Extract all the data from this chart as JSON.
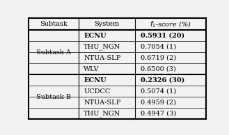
{
  "col_headers": [
    "Subtask",
    "System",
    "f1-score (%)"
  ],
  "rows": [
    {
      "subtask": "Subtask A",
      "system": "ECNU",
      "score": "0.5931 (20)",
      "bold": true
    },
    {
      "subtask": "",
      "system": "THU_NGN",
      "score": "0.7054 (1)",
      "bold": false
    },
    {
      "subtask": "",
      "system": "NTUA-SLP",
      "score": "0.6719 (2)",
      "bold": false
    },
    {
      "subtask": "",
      "system": "WLV",
      "score": "0.6500 (3)",
      "bold": false
    },
    {
      "subtask": "Subtask B",
      "system": "ECNU",
      "score": "0.2326 (30)",
      "bold": true
    },
    {
      "subtask": "",
      "system": "UCDCC",
      "score": "0.5074 (1)",
      "bold": false
    },
    {
      "subtask": "",
      "system": "NTUA-SLP",
      "score": "0.4959 (2)",
      "bold": false
    },
    {
      "subtask": "",
      "system": "THU_NGN",
      "score": "0.4947 (3)",
      "bold": false
    }
  ],
  "bg_color": "#f2f2f2",
  "font_size": 7.0,
  "header_font_size": 7.0,
  "col_boundaries": [
    0.0,
    0.28,
    0.6,
    1.0
  ],
  "thick_lw": 1.5,
  "thin_lw": 0.5
}
